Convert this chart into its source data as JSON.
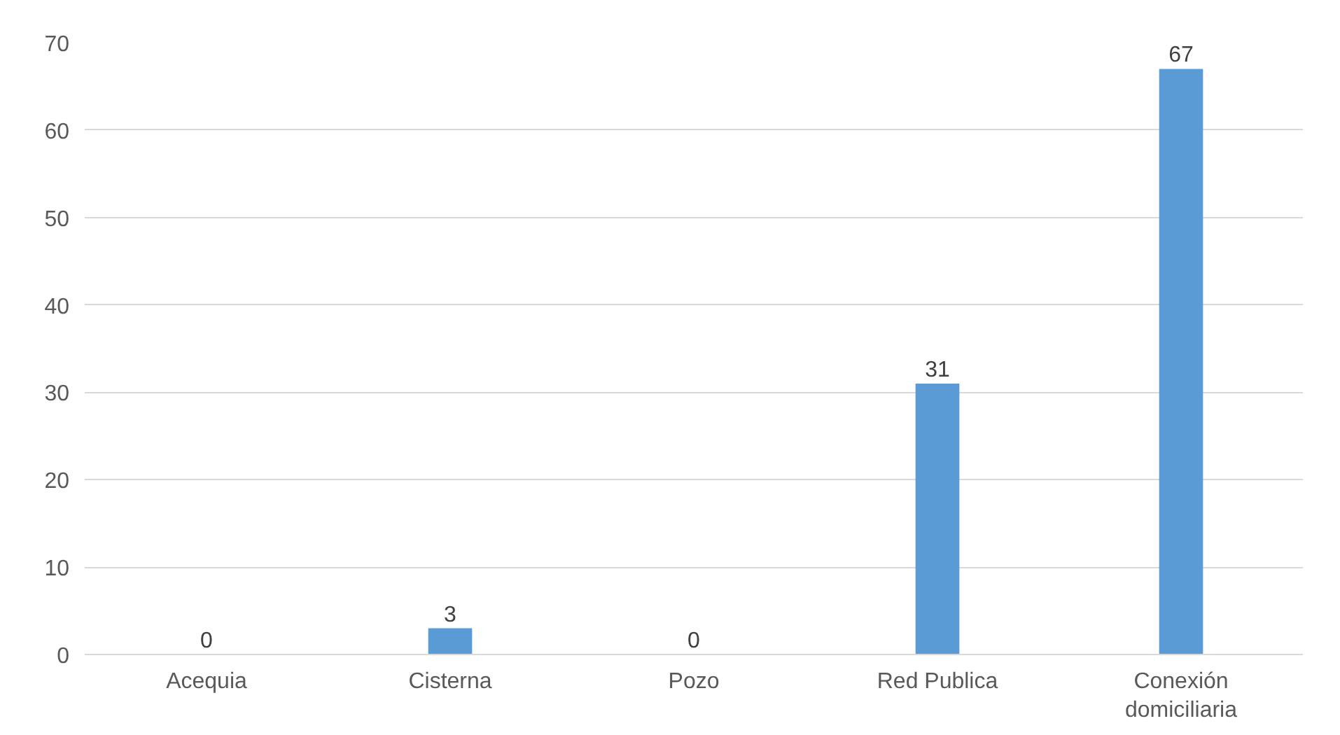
{
  "chart_data": {
    "type": "bar",
    "categories": [
      "Acequia",
      "Cisterna",
      "Pozo",
      "Red Publica",
      "Conexión domiciliaria"
    ],
    "values": [
      0,
      3,
      0,
      31,
      67
    ],
    "color": "#5b9bd5",
    "ylim": [
      0,
      70
    ],
    "yticks": [
      0,
      10,
      20,
      30,
      40,
      50,
      60,
      70
    ],
    "grid": "y",
    "data_labels": true
  }
}
